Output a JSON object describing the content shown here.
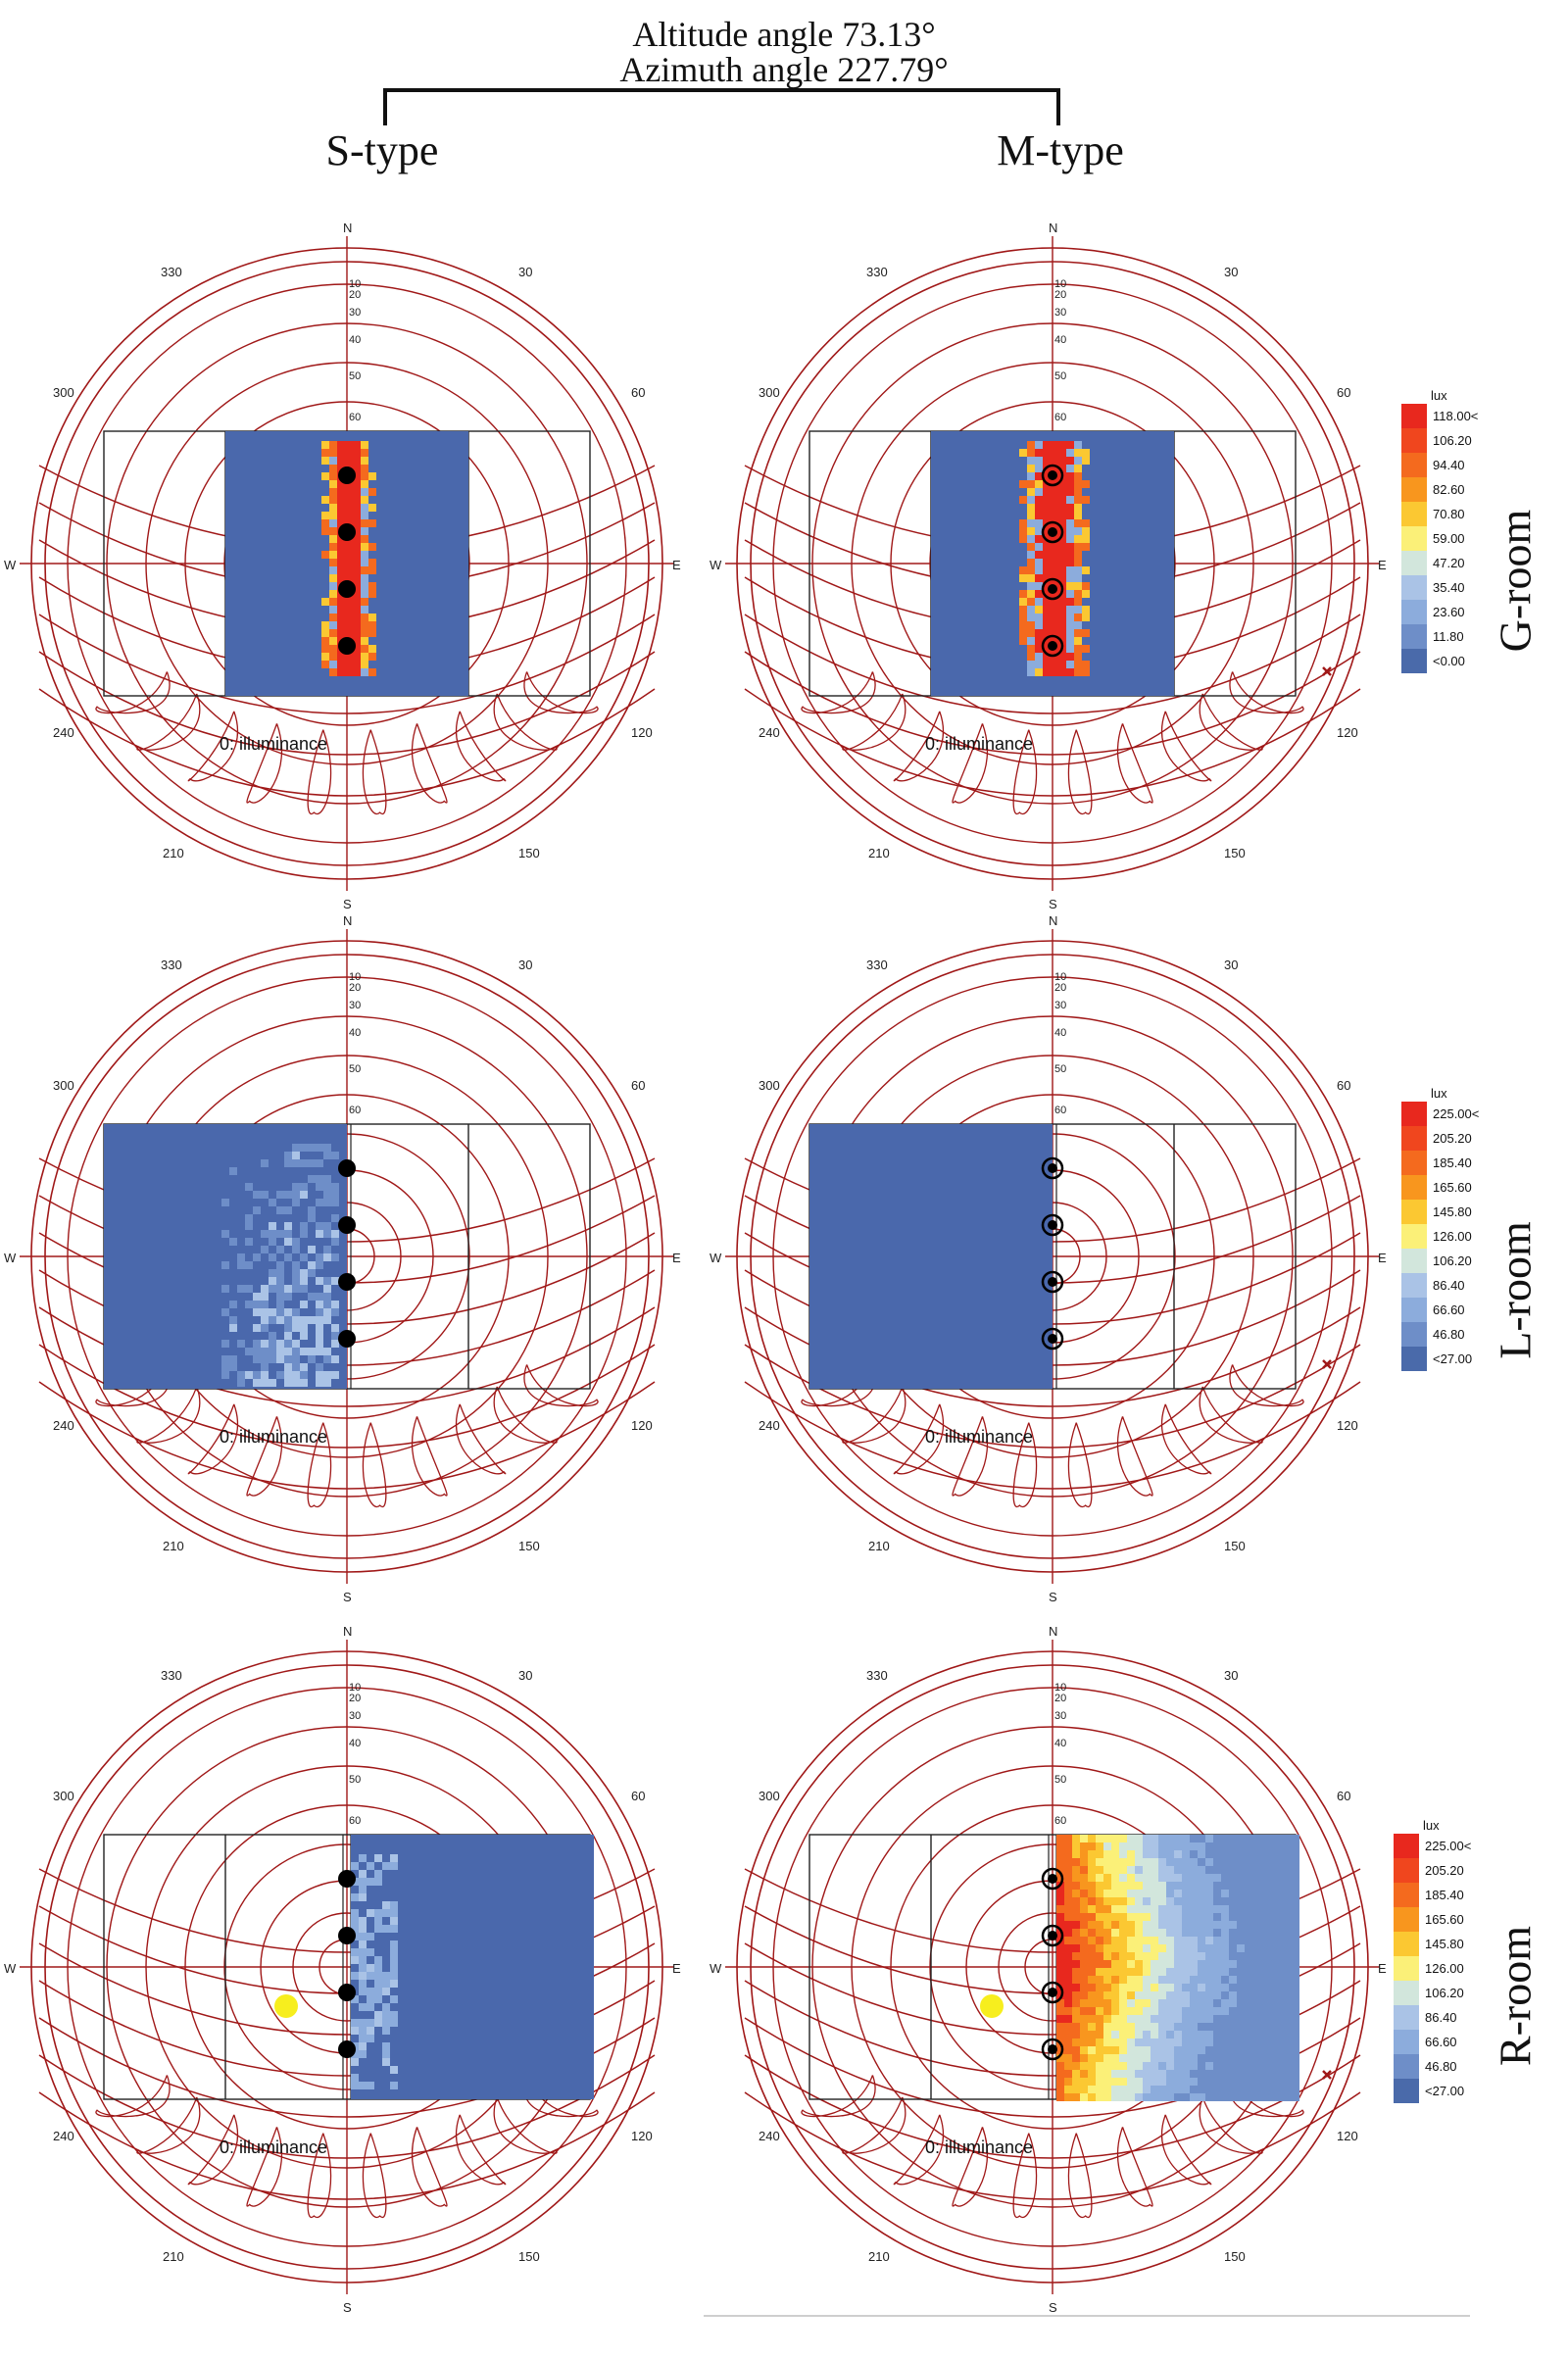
{
  "header": {
    "line1": "Altitude angle 73.13°",
    "line2": "Azimuth angle 227.79°"
  },
  "columns": [
    "S-type",
    "M-type"
  ],
  "rooms": [
    "G-room",
    "L-room",
    "R-room"
  ],
  "compass": {
    "n": "N",
    "s": "S",
    "e": "E",
    "w": "W",
    "az_labels": [
      "330",
      "30",
      "300",
      "60",
      "240",
      "120",
      "210",
      "150"
    ],
    "alt_labels": [
      "10",
      "20",
      "30",
      "40",
      "50",
      "60"
    ]
  },
  "panel_caption": "0: illuminance",
  "legends": [
    {
      "unit": "lux",
      "labels": [
        "118.00<",
        "106.20",
        "94.40",
        "82.60",
        "70.80",
        "59.00",
        "47.20",
        "35.40",
        "23.60",
        "11.80",
        "<0.00"
      ]
    },
    {
      "unit": "lux",
      "labels": [
        "225.00<",
        "205.20",
        "185.40",
        "165.60",
        "145.80",
        "126.00",
        "106.20",
        "86.40",
        "66.60",
        "46.80",
        "<27.00"
      ]
    },
    {
      "unit": "lux",
      "labels": [
        "225.00<",
        "205.20",
        "185.40",
        "165.60",
        "145.80",
        "126.00",
        "106.20",
        "86.40",
        "66.60",
        "46.80",
        "<27.00"
      ]
    }
  ],
  "legend_colors": [
    "#e8281e",
    "#f0461e",
    "#f46a1e",
    "#f8961e",
    "#fbc832",
    "#fbf078",
    "#d2e6dc",
    "#aac3e6",
    "#8cacdc",
    "#6e8ec8",
    "#4a6aaa"
  ],
  "colors": {
    "sunpath": "#a01818",
    "grid_blue": "#4a68ac",
    "hot": "#e8281e",
    "black": "#000000"
  }
}
